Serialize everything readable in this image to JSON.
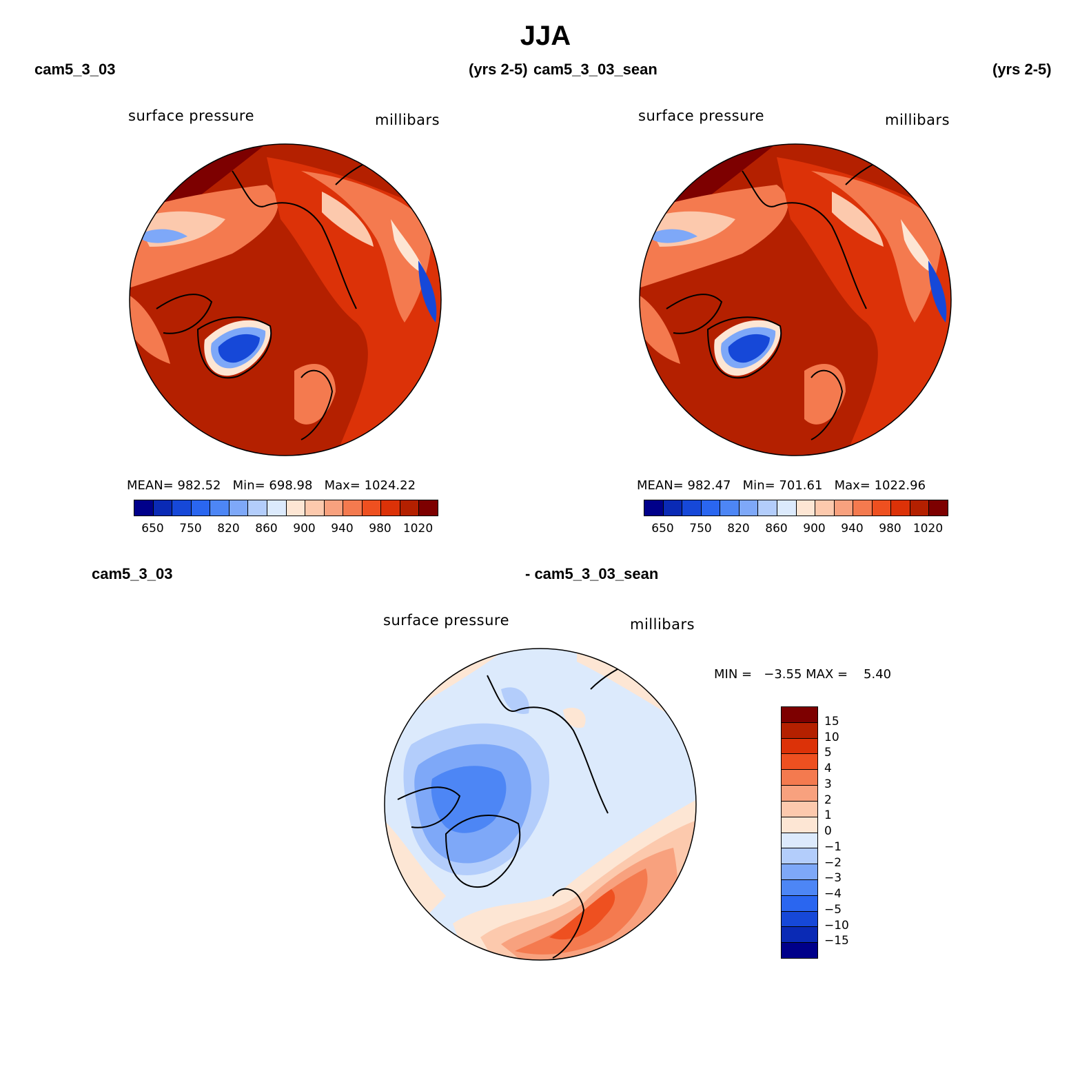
{
  "figure": {
    "title": "JJA"
  },
  "panels": [
    {
      "case_label": "cam5_3_03",
      "years_label": "(yrs 2-5)",
      "var_label": "surface pressure",
      "units_label": "millibars",
      "stats": {
        "mean_label": "MEAN=",
        "mean": "982.52",
        "min_label": "Min=",
        "min": "698.98",
        "max_label": "Max=",
        "max": "1024.22"
      }
    },
    {
      "case_label": "cam5_3_03_sean",
      "years_label": "(yrs 2-5)",
      "var_label": "surface pressure",
      "units_label": "millibars",
      "stats": {
        "mean_label": "MEAN=",
        "mean": "982.47",
        "min_label": "Min=",
        "min": "701.61",
        "max_label": "Max=",
        "max": "1022.96"
      }
    }
  ],
  "diff_panel": {
    "left_label": "cam5_3_03",
    "right_label": "- cam5_3_03_sean",
    "var_label": "surface pressure",
    "units_label": "millibars",
    "minmax_text": "MIN =   −3.55 MAX =    5.40"
  },
  "abs_colorbar": {
    "colors": [
      "#00008a",
      "#0a2ab5",
      "#1648d8",
      "#2a66f0",
      "#4d86f5",
      "#7ea8f8",
      "#b3cdfb",
      "#dceafc",
      "#fde6d4",
      "#fcc9ad",
      "#f8a17e",
      "#f47a4f",
      "#ee5020",
      "#dc3208",
      "#b42000",
      "#7d0000"
    ],
    "ticks": [
      "650",
      "750",
      "820",
      "860",
      "900",
      "940",
      "980",
      "1020"
    ]
  },
  "diff_colorbar": {
    "colors": [
      "#7d0000",
      "#b42000",
      "#dc3208",
      "#ee5020",
      "#f47a4f",
      "#f8a17e",
      "#fcc9ad",
      "#fde6d4",
      "#dceafc",
      "#b3cdfb",
      "#7ea8f8",
      "#4d86f5",
      "#2a66f0",
      "#1648d8",
      "#0a2ab5",
      "#00008a"
    ],
    "ticks": [
      "15",
      "10",
      "5",
      "4",
      "3",
      "2",
      "1",
      "0",
      "−1",
      "−2",
      "−3",
      "−4",
      "−5",
      "−10",
      "−15"
    ]
  },
  "map_palette": {
    "ocean_high": "#b42000",
    "land_mid": "#dc3208",
    "land_low": "#f47a4f",
    "band_light": "#fcc9ad",
    "pale": "#fde6d4",
    "ice_blue": "#1648d8",
    "ice_light": "#7ea8f8",
    "top_dark": "#7d0000",
    "diff_base": "#dceafc",
    "diff_neg1": "#b3cdfb",
    "diff_neg2": "#7ea8f8",
    "diff_neg3": "#4d86f5",
    "diff_pos_pale": "#fde6d4",
    "diff_pos_light": "#fcc9ad",
    "diff_pos2": "#f8a17e",
    "diff_pos3": "#f47a4f",
    "diff_pos4": "#ee5020"
  }
}
